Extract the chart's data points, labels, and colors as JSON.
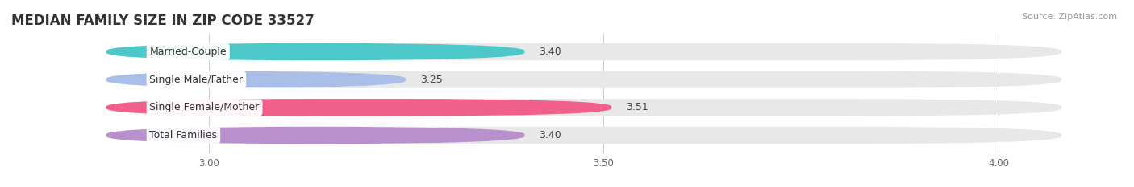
{
  "title": "MEDIAN FAMILY SIZE IN ZIP CODE 33527",
  "source": "Source: ZipAtlas.com",
  "categories": [
    "Married-Couple",
    "Single Male/Father",
    "Single Female/Mother",
    "Total Families"
  ],
  "values": [
    3.4,
    3.25,
    3.51,
    3.4
  ],
  "bar_colors": [
    "#4dc8c8",
    "#aabfe8",
    "#f0608a",
    "#b890cc"
  ],
  "xlim_data": [
    2.75,
    4.15
  ],
  "xlim_display": [
    2.85,
    4.1
  ],
  "xticks": [
    3.0,
    3.5,
    4.0
  ],
  "xtick_labels": [
    "3.00",
    "3.50",
    "4.00"
  ],
  "background_color": "#ffffff",
  "bar_bg_color": "#e8e8e8",
  "title_fontsize": 12,
  "source_fontsize": 8,
  "label_fontsize": 9,
  "value_fontsize": 9,
  "bar_height": 0.62,
  "bar_gap": 1.0
}
